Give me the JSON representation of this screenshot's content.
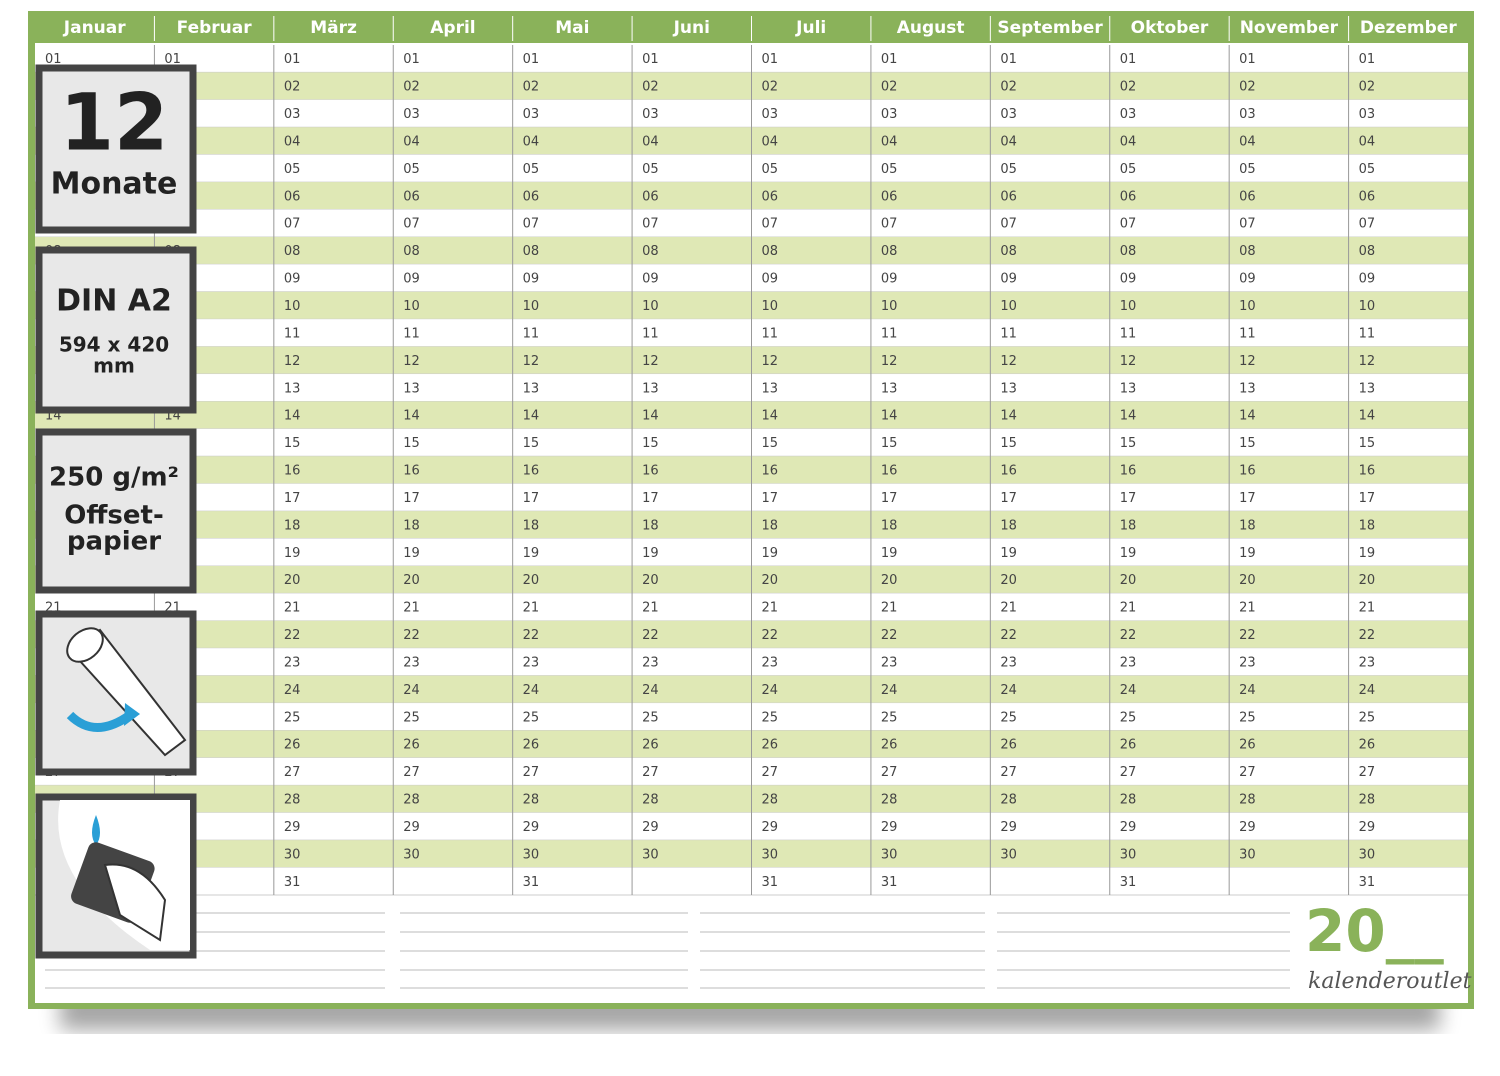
{
  "header": {
    "months": [
      {
        "name": "Januar",
        "days": 31
      },
      {
        "name": "Februar",
        "days": 29
      },
      {
        "name": "März",
        "days": 31
      },
      {
        "name": "April",
        "days": 30
      },
      {
        "name": "Mai",
        "days": 31
      },
      {
        "name": "Juni",
        "days": 30
      },
      {
        "name": "Juli",
        "days": 31
      },
      {
        "name": "August",
        "days": 31
      },
      {
        "name": "September",
        "days": 30
      },
      {
        "name": "Oktober",
        "days": 31
      },
      {
        "name": "November",
        "days": 30
      },
      {
        "name": "Dezember",
        "days": 31
      }
    ]
  },
  "days": [
    "01",
    "02",
    "03",
    "04",
    "05",
    "06",
    "07",
    "08",
    "09",
    "10",
    "11",
    "12",
    "13",
    "14",
    "15",
    "16",
    "17",
    "18",
    "19",
    "20",
    "21",
    "22",
    "23",
    "24",
    "25",
    "26",
    "27",
    "28",
    "29",
    "30",
    "31"
  ],
  "badges": [
    {
      "lines": [
        "12",
        "Monate"
      ]
    },
    {
      "lines": [
        "DIN A2",
        "594 x 420",
        "mm"
      ]
    },
    {
      "lines": [
        "250 g/m²",
        "Offset-",
        "papier"
      ]
    }
  ],
  "footer": {
    "year": "20__",
    "brand": "kalenderoutlet"
  }
}
